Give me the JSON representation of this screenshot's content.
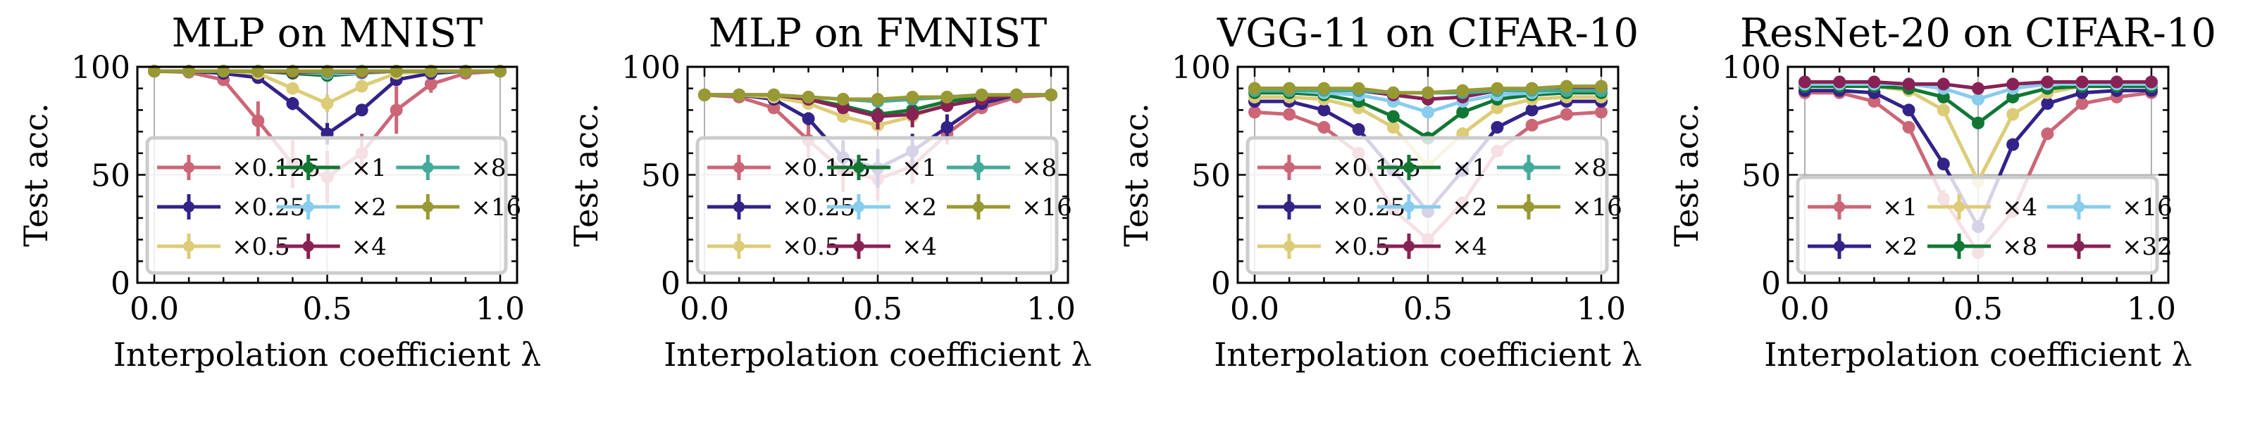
{
  "figure": {
    "palette": {
      "rose": "#CC6677",
      "indigo": "#332288",
      "sand": "#DDCC77",
      "green": "#117733",
      "cyan": "#88CCEE",
      "wine": "#882255",
      "teal": "#44AA99",
      "olive": "#999933"
    }
  },
  "chart_data": [
    {
      "type": "line",
      "title": "MLP on MNIST",
      "xlabel": "Interpolation coefficient λ",
      "ylabel": "Test acc.",
      "xlim": [
        0,
        1
      ],
      "ylim": [
        0,
        100
      ],
      "xticks": [
        "0.0",
        "0.5",
        "1.0"
      ],
      "yticks": [
        "0",
        "50",
        "100"
      ],
      "grid": "vertical at 0, 0.5, 1",
      "legend_placement": "lower-center",
      "legend_columns": 3,
      "x": [
        0.0,
        0.1,
        0.2,
        0.3,
        0.4,
        0.5,
        0.6,
        0.7,
        0.8,
        0.9,
        1.0
      ],
      "series": [
        {
          "name": "×0.125",
          "color": "#CC6677",
          "values": [
            98,
            97.5,
            94,
            75,
            55,
            49,
            60,
            80,
            92,
            97,
            98
          ],
          "errors": [
            0,
            0.5,
            1,
            9,
            11,
            12,
            9,
            11,
            4,
            1,
            0
          ]
        },
        {
          "name": "×0.25",
          "color": "#332288",
          "values": [
            98,
            98,
            97,
            95,
            83,
            69,
            80,
            94,
            97,
            98,
            98
          ],
          "errors": [
            0,
            0,
            0.5,
            1,
            3,
            5,
            2,
            1,
            0.5,
            0,
            0
          ]
        },
        {
          "name": "×0.5",
          "color": "#DDCC77",
          "values": [
            98,
            98,
            98,
            97,
            90,
            83,
            91,
            97,
            98,
            98,
            98
          ],
          "errors": [
            0,
            0,
            0,
            0.5,
            2,
            4,
            2,
            0.5,
            0,
            0,
            0
          ]
        },
        {
          "name": "×1",
          "color": "#117733",
          "values": [
            98,
            98,
            98,
            98,
            97,
            96,
            97,
            98,
            98,
            98,
            98
          ],
          "errors": [
            0,
            0,
            0,
            0,
            0.5,
            0.5,
            0.5,
            0,
            0,
            0,
            0
          ]
        },
        {
          "name": "×2",
          "color": "#88CCEE",
          "values": [
            98,
            98,
            98,
            98,
            97.5,
            97,
            97,
            98,
            98,
            98,
            98
          ],
          "errors": [
            0,
            0,
            0,
            0,
            0,
            0.5,
            0,
            0,
            0,
            0,
            0
          ]
        },
        {
          "name": "×4",
          "color": "#882255",
          "values": [
            98,
            98,
            98,
            98,
            97.5,
            97.5,
            97.5,
            98,
            98,
            98,
            98
          ],
          "errors": [
            0,
            0,
            0,
            0,
            0,
            0,
            0,
            0,
            0,
            0,
            0
          ]
        },
        {
          "name": "×8",
          "color": "#44AA99",
          "values": [
            98,
            98,
            98,
            98,
            98,
            97.5,
            98,
            98,
            98,
            98,
            98
          ],
          "errors": [
            0,
            0,
            0,
            0,
            0,
            0,
            0,
            0,
            0,
            0,
            0
          ]
        },
        {
          "name": "×16",
          "color": "#999933",
          "values": [
            98,
            98,
            98,
            98,
            98,
            98,
            98,
            98,
            98,
            98,
            98
          ],
          "errors": [
            0,
            0,
            0,
            0,
            0,
            0,
            0,
            0,
            0,
            0,
            0
          ]
        }
      ]
    },
    {
      "type": "line",
      "title": "MLP on FMNIST",
      "xlabel": "Interpolation coefficient λ",
      "ylabel": "Test acc.",
      "xlim": [
        0,
        1
      ],
      "ylim": [
        0,
        100
      ],
      "xticks": [
        "0.0",
        "0.5",
        "1.0"
      ],
      "yticks": [
        "0",
        "50",
        "100"
      ],
      "grid": "vertical at 0, 0.5, 1",
      "legend_placement": "lower-center",
      "legend_columns": 3,
      "x": [
        0.0,
        0.1,
        0.2,
        0.3,
        0.4,
        0.5,
        0.6,
        0.7,
        0.8,
        0.9,
        1.0
      ],
      "series": [
        {
          "name": "×0.125",
          "color": "#CC6677",
          "values": [
            87,
            86,
            81,
            66,
            52,
            48,
            54,
            69,
            81,
            86,
            87
          ],
          "errors": [
            0,
            0.5,
            2,
            8,
            10,
            10,
            8,
            5,
            2,
            0.5,
            0
          ]
        },
        {
          "name": "×0.25",
          "color": "#332288",
          "values": [
            87,
            87,
            85,
            76,
            58,
            53,
            61,
            72,
            83,
            87,
            87
          ],
          "errors": [
            0,
            0,
            1,
            3,
            8,
            9,
            8,
            6,
            2,
            0,
            0
          ]
        },
        {
          "name": "×0.5",
          "color": "#DDCC77",
          "values": [
            87,
            87,
            86,
            83,
            77,
            73,
            77,
            83,
            86,
            87,
            87
          ],
          "errors": [
            0,
            0,
            0.5,
            1,
            1,
            2,
            1,
            1,
            0.5,
            0,
            0
          ]
        },
        {
          "name": "×1",
          "color": "#117733",
          "values": [
            87,
            87,
            87,
            85,
            82,
            78,
            80,
            84,
            86,
            87,
            87
          ],
          "errors": [
            0,
            0,
            0,
            0.5,
            1,
            2,
            1,
            0.5,
            0,
            0,
            0
          ]
        },
        {
          "name": "×2",
          "color": "#88CCEE",
          "values": [
            87,
            87,
            87,
            86,
            85,
            84,
            85,
            86,
            87,
            87,
            87
          ],
          "errors": [
            0,
            0,
            0,
            0,
            0.5,
            0.5,
            0.5,
            0,
            0,
            0,
            0
          ]
        },
        {
          "name": "×4",
          "color": "#882255",
          "values": [
            87,
            87,
            87,
            85,
            81,
            77,
            78,
            82,
            85,
            87,
            87
          ],
          "errors": [
            0,
            0,
            0,
            0.5,
            1,
            6,
            6,
            2,
            0.5,
            0,
            0
          ]
        },
        {
          "name": "×8",
          "color": "#44AA99",
          "values": [
            87,
            87,
            87,
            86,
            85,
            84,
            85,
            86,
            87,
            87,
            87
          ],
          "errors": [
            0,
            0,
            0,
            0,
            0.5,
            0.5,
            0.5,
            0,
            0,
            0,
            0
          ]
        },
        {
          "name": "×16",
          "color": "#999933",
          "values": [
            87,
            87,
            87,
            86,
            85,
            85,
            86,
            86,
            87,
            87,
            87
          ],
          "errors": [
            0,
            0,
            0,
            0,
            0,
            0,
            0,
            0,
            0,
            0,
            0
          ]
        }
      ]
    },
    {
      "type": "line",
      "title": "VGG-11 on CIFAR-10",
      "xlabel": "Interpolation coefficient λ",
      "ylabel": "Test acc.",
      "xlim": [
        0,
        1
      ],
      "ylim": [
        0,
        100
      ],
      "xticks": [
        "0.0",
        "0.5",
        "1.0"
      ],
      "yticks": [
        "0",
        "50",
        "100"
      ],
      "grid": "vertical at 0, 0.5, 1",
      "legend_placement": "lower-center",
      "legend_columns": 3,
      "x": [
        0.0,
        0.1,
        0.2,
        0.3,
        0.4,
        0.5,
        0.6,
        0.7,
        0.8,
        0.9,
        1.0
      ],
      "series": [
        {
          "name": "×0.125",
          "color": "#CC6677",
          "values": [
            79,
            78,
            72,
            60,
            34,
            20,
            37,
            61,
            73,
            78,
            79
          ],
          "errors": [
            0.5,
            0.5,
            0.5,
            0.5,
            2,
            3,
            3,
            1,
            0.5,
            0.5,
            0.5
          ]
        },
        {
          "name": "×0.25",
          "color": "#332288",
          "values": [
            84,
            84,
            80,
            71,
            52,
            33,
            52,
            72,
            80,
            84,
            84
          ],
          "errors": [
            0.5,
            0.5,
            0.5,
            0.5,
            1,
            2,
            1,
            0.5,
            0.5,
            0.5,
            0.5
          ]
        },
        {
          "name": "×0.5",
          "color": "#DDCC77",
          "values": [
            86,
            86,
            85,
            81,
            72,
            54,
            69,
            81,
            85,
            86,
            86
          ],
          "errors": [
            0.5,
            0.5,
            0.5,
            0.5,
            1,
            3,
            3,
            0.5,
            0.5,
            0.5,
            0.5
          ]
        },
        {
          "name": "×1",
          "color": "#117733",
          "values": [
            88,
            88,
            87,
            84,
            77,
            67,
            79,
            85,
            87,
            88,
            88
          ],
          "errors": [
            0.5,
            0.5,
            0.5,
            0.5,
            0.5,
            1,
            1,
            0.5,
            0.5,
            0.5,
            0.5
          ]
        },
        {
          "name": "×2",
          "color": "#88CCEE",
          "values": [
            89,
            89,
            88,
            87,
            84,
            79,
            84,
            87,
            88,
            89,
            89
          ],
          "errors": [
            0,
            0,
            0,
            0,
            0.5,
            1,
            0.5,
            0,
            0,
            0,
            0
          ]
        },
        {
          "name": "×4",
          "color": "#882255",
          "values": [
            90,
            90,
            90,
            89,
            87,
            85,
            86,
            89,
            90,
            90,
            90
          ],
          "errors": [
            0,
            0,
            0,
            0,
            0.5,
            1,
            0.5,
            0,
            0,
            0,
            0
          ]
        },
        {
          "name": "×8",
          "color": "#44AA99",
          "values": [
            89,
            89,
            89,
            89,
            88,
            88,
            88,
            89,
            89,
            89,
            89
          ],
          "errors": [
            0,
            0,
            0,
            0,
            0,
            0,
            0,
            0,
            0,
            0,
            0
          ]
        },
        {
          "name": "×16",
          "color": "#999933",
          "values": [
            90,
            90,
            90,
            90,
            88,
            88,
            89,
            90,
            90,
            91,
            91
          ],
          "errors": [
            0,
            0,
            0,
            0,
            0,
            0,
            0,
            0,
            0,
            0,
            0
          ]
        }
      ]
    },
    {
      "type": "line",
      "title": "ResNet-20 on CIFAR-10",
      "xlabel": "Interpolation coefficient λ",
      "ylabel": "Test acc.",
      "xlim": [
        0,
        1
      ],
      "ylim": [
        0,
        100
      ],
      "xticks": [
        "0.0",
        "0.5",
        "1.0"
      ],
      "yticks": [
        "0",
        "50",
        "100"
      ],
      "grid": "on at 0, 0.5, 1 (x) and 50 (y)",
      "legend_placement": "lower-center",
      "legend_columns": 3,
      "x": [
        0.0,
        0.1,
        0.2,
        0.3,
        0.4,
        0.5,
        0.6,
        0.7,
        0.8,
        0.9,
        1.0
      ],
      "series": [
        {
          "name": "×1",
          "color": "#CC6677",
          "values": [
            88,
            88,
            84,
            72,
            39,
            14,
            33,
            69,
            83,
            86,
            88
          ],
          "errors": [
            0.5,
            0.5,
            0.5,
            0.5,
            4,
            2,
            2,
            0.5,
            0.5,
            0.5,
            0.5
          ]
        },
        {
          "name": "×2",
          "color": "#332288",
          "values": [
            89,
            89,
            88,
            80,
            55,
            26,
            64,
            83,
            88,
            89,
            89
          ],
          "errors": [
            0.5,
            0.5,
            0.5,
            0.5,
            2,
            2,
            1,
            0.5,
            0.5,
            0.5,
            0.5
          ]
        },
        {
          "name": "×4",
          "color": "#DDCC77",
          "values": [
            91,
            91,
            91,
            89,
            80,
            47,
            78,
            88,
            91,
            91,
            91
          ],
          "errors": [
            0,
            0,
            0,
            0.5,
            1,
            3,
            1,
            0.5,
            0,
            0,
            0
          ]
        },
        {
          "name": "×8",
          "color": "#117733",
          "values": [
            91,
            91,
            91,
            90,
            86,
            74,
            86,
            90,
            91,
            91,
            91
          ],
          "errors": [
            0,
            0,
            0,
            0,
            0.5,
            1,
            0.5,
            0,
            0,
            0,
            0
          ]
        },
        {
          "name": "×16",
          "color": "#88CCEE",
          "values": [
            92,
            92,
            92,
            92,
            90,
            85,
            90,
            92,
            92,
            92,
            92
          ],
          "errors": [
            0,
            0,
            0,
            0,
            0.5,
            0.5,
            0.5,
            0,
            0,
            0,
            0
          ]
        },
        {
          "name": "×32",
          "color": "#882255",
          "values": [
            93,
            93,
            93,
            92,
            92,
            90,
            92,
            93,
            93,
            93,
            93
          ],
          "errors": [
            0,
            0,
            0,
            0,
            0,
            0,
            0,
            0,
            0,
            0,
            0
          ]
        }
      ]
    }
  ]
}
